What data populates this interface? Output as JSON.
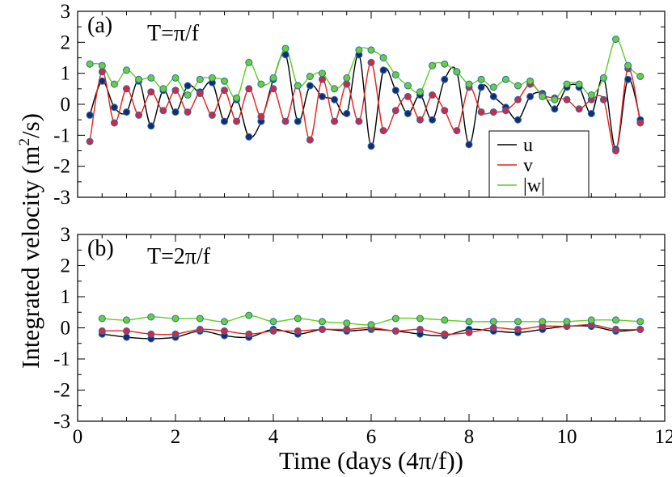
{
  "figure": {
    "ylabel_main": "Integrated velocity (m",
    "ylabel_sup": "2",
    "ylabel_tail": "/s)",
    "xlabel": "Time (days (4π/f))"
  },
  "chart_data": [
    {
      "type": "line",
      "panel": "(a)",
      "label": "T=π/f",
      "xlim": [
        0,
        12
      ],
      "ylim": [
        -3,
        3
      ],
      "xticks": [
        0,
        2,
        4,
        6,
        8,
        10,
        12
      ],
      "yticks": [
        3,
        2,
        1,
        0,
        -1,
        -2,
        -3
      ],
      "show_xtick_labels": false,
      "legend": {
        "placement": "bottom-right",
        "entries": [
          {
            "name": "u",
            "color": "#000000"
          },
          {
            "name": "v",
            "color": "#e8211b"
          },
          {
            "name": "|w|",
            "color": "#5fcf1e"
          }
        ]
      },
      "series": [
        {
          "name": "u",
          "color": "#000000",
          "marker": "#1a2a6c",
          "points": [
            [
              0.25,
              -0.35
            ],
            [
              0.5,
              0.75
            ],
            [
              0.75,
              -0.1
            ],
            [
              1.0,
              -0.25
            ],
            [
              1.25,
              0.75
            ],
            [
              1.5,
              -0.7
            ],
            [
              1.75,
              0.45
            ],
            [
              2.0,
              -0.25
            ],
            [
              2.25,
              0.6
            ],
            [
              2.5,
              0.4
            ],
            [
              2.75,
              0.7
            ],
            [
              3.0,
              -0.55
            ],
            [
              3.25,
              0.15
            ],
            [
              3.5,
              -1.05
            ],
            [
              3.75,
              -0.55
            ],
            [
              4.0,
              0.8
            ],
            [
              4.25,
              1.6
            ],
            [
              4.5,
              -0.55
            ],
            [
              4.75,
              0.6
            ],
            [
              5.0,
              0.25
            ],
            [
              5.25,
              0.15
            ],
            [
              5.5,
              -0.3
            ],
            [
              5.75,
              1.6
            ],
            [
              6.0,
              -1.35
            ],
            [
              6.25,
              1.1
            ],
            [
              6.5,
              0.45
            ],
            [
              6.75,
              -0.3
            ],
            [
              7.0,
              0.3
            ],
            [
              7.25,
              -0.5
            ],
            [
              7.5,
              0.8
            ],
            [
              7.75,
              1.05
            ],
            [
              8.0,
              -1.3
            ],
            [
              8.25,
              0.55
            ],
            [
              8.5,
              0.25
            ],
            [
              8.75,
              -0.1
            ],
            [
              9.0,
              -0.5
            ],
            [
              9.25,
              0.25
            ],
            [
              9.5,
              0.35
            ],
            [
              9.75,
              -0.15
            ],
            [
              10.0,
              0.55
            ],
            [
              10.25,
              0.55
            ],
            [
              10.5,
              -0.3
            ],
            [
              10.75,
              0.85
            ],
            [
              11.0,
              -1.45
            ],
            [
              11.25,
              0.8
            ],
            [
              11.5,
              -0.5
            ]
          ]
        },
        {
          "name": "v",
          "color": "#e8211b",
          "marker": "#d7263d",
          "points": [
            [
              0.25,
              -1.2
            ],
            [
              0.5,
              1.05
            ],
            [
              0.75,
              -0.6
            ],
            [
              1.0,
              0.5
            ],
            [
              1.25,
              -0.35
            ],
            [
              1.5,
              0.4
            ],
            [
              1.75,
              -0.2
            ],
            [
              2.0,
              0.45
            ],
            [
              2.25,
              -0.25
            ],
            [
              2.5,
              0.35
            ],
            [
              2.75,
              -0.35
            ],
            [
              3.0,
              0.45
            ],
            [
              3.25,
              -0.55
            ],
            [
              3.5,
              0.5
            ],
            [
              3.75,
              -0.4
            ],
            [
              4.0,
              0.5
            ],
            [
              4.25,
              -0.55
            ],
            [
              4.5,
              0.6
            ],
            [
              4.75,
              -1.15
            ],
            [
              5.0,
              0.8
            ],
            [
              5.25,
              -0.55
            ],
            [
              5.5,
              0.65
            ],
            [
              5.75,
              -0.55
            ],
            [
              6.0,
              1.35
            ],
            [
              6.25,
              -0.85
            ],
            [
              6.5,
              -0.2
            ],
            [
              6.75,
              0.25
            ],
            [
              7.0,
              -0.5
            ],
            [
              7.25,
              0.3
            ],
            [
              7.5,
              -0.2
            ],
            [
              7.75,
              -0.85
            ],
            [
              8.0,
              0.55
            ],
            [
              8.25,
              -0.25
            ],
            [
              8.5,
              -0.25
            ],
            [
              8.75,
              -0.2
            ],
            [
              9.0,
              0.15
            ],
            [
              9.25,
              0.65
            ],
            [
              9.5,
              0.3
            ],
            [
              9.75,
              0.2
            ],
            [
              10.0,
              0.15
            ],
            [
              10.25,
              -0.15
            ],
            [
              10.5,
              0.15
            ],
            [
              10.75,
              0.15
            ],
            [
              11.0,
              -1.5
            ],
            [
              11.25,
              1.15
            ],
            [
              11.5,
              -0.6
            ]
          ]
        },
        {
          "name": "|w|",
          "color": "#5fcf1e",
          "marker": "#6ecf35",
          "points": [
            [
              0.25,
              1.3
            ],
            [
              0.5,
              1.25
            ],
            [
              0.75,
              0.65
            ],
            [
              1.0,
              1.1
            ],
            [
              1.25,
              0.8
            ],
            [
              1.5,
              0.85
            ],
            [
              1.75,
              0.5
            ],
            [
              2.0,
              0.85
            ],
            [
              2.25,
              0.3
            ],
            [
              2.5,
              0.8
            ],
            [
              2.75,
              0.85
            ],
            [
              3.0,
              0.75
            ],
            [
              3.25,
              0.2
            ],
            [
              3.5,
              1.35
            ],
            [
              3.75,
              0.65
            ],
            [
              4.0,
              0.85
            ],
            [
              4.25,
              1.8
            ],
            [
              4.5,
              0.6
            ],
            [
              4.75,
              0.9
            ],
            [
              5.0,
              1.0
            ],
            [
              5.25,
              0.5
            ],
            [
              5.5,
              0.85
            ],
            [
              5.75,
              1.75
            ],
            [
              6.0,
              1.75
            ],
            [
              6.25,
              1.5
            ],
            [
              6.5,
              0.95
            ],
            [
              6.75,
              0.6
            ],
            [
              7.0,
              0.4
            ],
            [
              7.25,
              1.25
            ],
            [
              7.5,
              1.3
            ],
            [
              7.75,
              1.05
            ],
            [
              8.0,
              0.65
            ],
            [
              8.25,
              0.8
            ],
            [
              8.5,
              0.55
            ],
            [
              8.75,
              0.8
            ],
            [
              9.0,
              0.6
            ],
            [
              9.25,
              0.75
            ],
            [
              9.5,
              0.25
            ],
            [
              9.75,
              0.15
            ],
            [
              10.0,
              0.65
            ],
            [
              10.25,
              0.65
            ],
            [
              10.5,
              0.3
            ],
            [
              10.75,
              0.85
            ],
            [
              11.0,
              2.1
            ],
            [
              11.25,
              1.25
            ],
            [
              11.5,
              0.9
            ]
          ]
        }
      ]
    },
    {
      "type": "line",
      "panel": "(b)",
      "label": "T=2π/f",
      "xlim": [
        0,
        12
      ],
      "ylim": [
        -3,
        3
      ],
      "xticks": [
        0,
        2,
        4,
        6,
        8,
        10,
        12
      ],
      "yticks": [
        3,
        2,
        1,
        0,
        -1,
        -2,
        -3
      ],
      "show_xtick_labels": true,
      "series": [
        {
          "name": "u",
          "color": "#000000",
          "marker": "#1a2a6c",
          "points": [
            [
              0.5,
              -0.2
            ],
            [
              1.0,
              -0.3
            ],
            [
              1.5,
              -0.35
            ],
            [
              2.0,
              -0.3
            ],
            [
              2.5,
              -0.1
            ],
            [
              3.0,
              -0.25
            ],
            [
              3.5,
              -0.3
            ],
            [
              4.0,
              -0.05
            ],
            [
              4.5,
              -0.2
            ],
            [
              5.0,
              -0.05
            ],
            [
              5.5,
              -0.1
            ],
            [
              6.0,
              -0.05
            ],
            [
              6.5,
              -0.1
            ],
            [
              7.0,
              -0.2
            ],
            [
              7.5,
              -0.25
            ],
            [
              8.0,
              -0.05
            ],
            [
              8.5,
              -0.1
            ],
            [
              9.0,
              -0.15
            ],
            [
              9.5,
              -0.05
            ],
            [
              10.0,
              0.05
            ],
            [
              10.5,
              0.05
            ],
            [
              11.0,
              -0.1
            ],
            [
              11.5,
              -0.05
            ]
          ]
        },
        {
          "name": "v",
          "color": "#e8211b",
          "marker": "#d7263d",
          "points": [
            [
              0.5,
              -0.1
            ],
            [
              1.0,
              -0.1
            ],
            [
              1.5,
              -0.2
            ],
            [
              2.0,
              -0.2
            ],
            [
              2.5,
              -0.05
            ],
            [
              3.0,
              -0.1
            ],
            [
              3.5,
              -0.2
            ],
            [
              4.0,
              -0.1
            ],
            [
              4.5,
              -0.1
            ],
            [
              5.0,
              -0.05
            ],
            [
              5.5,
              -0.05
            ],
            [
              6.0,
              0.0
            ],
            [
              6.5,
              -0.1
            ],
            [
              7.0,
              -0.05
            ],
            [
              7.5,
              -0.2
            ],
            [
              8.0,
              -0.15
            ],
            [
              8.5,
              0.0
            ],
            [
              9.0,
              -0.05
            ],
            [
              9.5,
              0.05
            ],
            [
              10.0,
              0.05
            ],
            [
              10.5,
              0.1
            ],
            [
              11.0,
              -0.05
            ],
            [
              11.5,
              -0.05
            ]
          ]
        },
        {
          "name": "|w|",
          "color": "#5fcf1e",
          "marker": "#6ecf35",
          "points": [
            [
              0.5,
              0.3
            ],
            [
              1.0,
              0.25
            ],
            [
              1.5,
              0.35
            ],
            [
              2.0,
              0.3
            ],
            [
              2.5,
              0.3
            ],
            [
              3.0,
              0.2
            ],
            [
              3.5,
              0.4
            ],
            [
              4.0,
              0.2
            ],
            [
              4.5,
              0.3
            ],
            [
              5.0,
              0.2
            ],
            [
              5.5,
              0.15
            ],
            [
              6.0,
              0.1
            ],
            [
              6.5,
              0.3
            ],
            [
              7.0,
              0.3
            ],
            [
              7.5,
              0.25
            ],
            [
              8.0,
              0.2
            ],
            [
              8.5,
              0.2
            ],
            [
              9.0,
              0.2
            ],
            [
              9.5,
              0.2
            ],
            [
              10.0,
              0.2
            ],
            [
              10.5,
              0.25
            ],
            [
              11.0,
              0.25
            ],
            [
              11.5,
              0.2
            ]
          ]
        }
      ]
    }
  ]
}
